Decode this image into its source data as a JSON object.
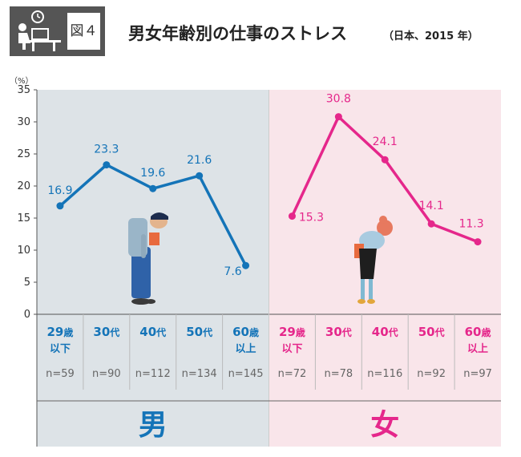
{
  "header": {
    "badge_label": "図４",
    "badge_icon": "person-at-desk-icon",
    "title": "男女年齢別の仕事のストレス",
    "subtitle": "（日本、2015 年）"
  },
  "colors": {
    "male": "#1474b8",
    "female": "#e5278b",
    "male_bg": "#dde3e7",
    "female_bg": "#f9e5ea"
  },
  "chart_data": {
    "type": "line",
    "ylabel": "（%）",
    "ylim": [
      0,
      35
    ],
    "yticks": [
      0,
      5,
      10,
      15,
      20,
      25,
      30,
      35
    ],
    "grid": false,
    "groups": [
      {
        "name": "男",
        "categories": [
          {
            "main": "29",
            "suffix": "歳",
            "line2": "以下",
            "n": "n=59"
          },
          {
            "main": "30",
            "suffix": "代",
            "line2": "",
            "n": "n=90"
          },
          {
            "main": "40",
            "suffix": "代",
            "line2": "",
            "n": "n=112"
          },
          {
            "main": "50",
            "suffix": "代",
            "line2": "",
            "n": "n=134"
          },
          {
            "main": "60",
            "suffix": "歳",
            "line2": "以上",
            "n": "n=145"
          }
        ],
        "values": [
          16.9,
          23.3,
          19.6,
          21.6,
          7.6
        ],
        "labels": [
          "16.9",
          "23.3",
          "19.6",
          "21.6",
          "7.6"
        ]
      },
      {
        "name": "女",
        "categories": [
          {
            "main": "29",
            "suffix": "歳",
            "line2": "以下",
            "n": "n=72"
          },
          {
            "main": "30",
            "suffix": "代",
            "line2": "",
            "n": "n=78"
          },
          {
            "main": "40",
            "suffix": "代",
            "line2": "",
            "n": "n=116"
          },
          {
            "main": "50",
            "suffix": "代",
            "line2": "",
            "n": "n=92"
          },
          {
            "main": "60",
            "suffix": "歳",
            "line2": "以上",
            "n": "n=97"
          }
        ],
        "values": [
          15.3,
          30.8,
          24.1,
          14.1,
          11.3
        ],
        "labels": [
          "15.3",
          "30.8",
          "24.1",
          "14.1",
          "11.3"
        ]
      }
    ]
  }
}
